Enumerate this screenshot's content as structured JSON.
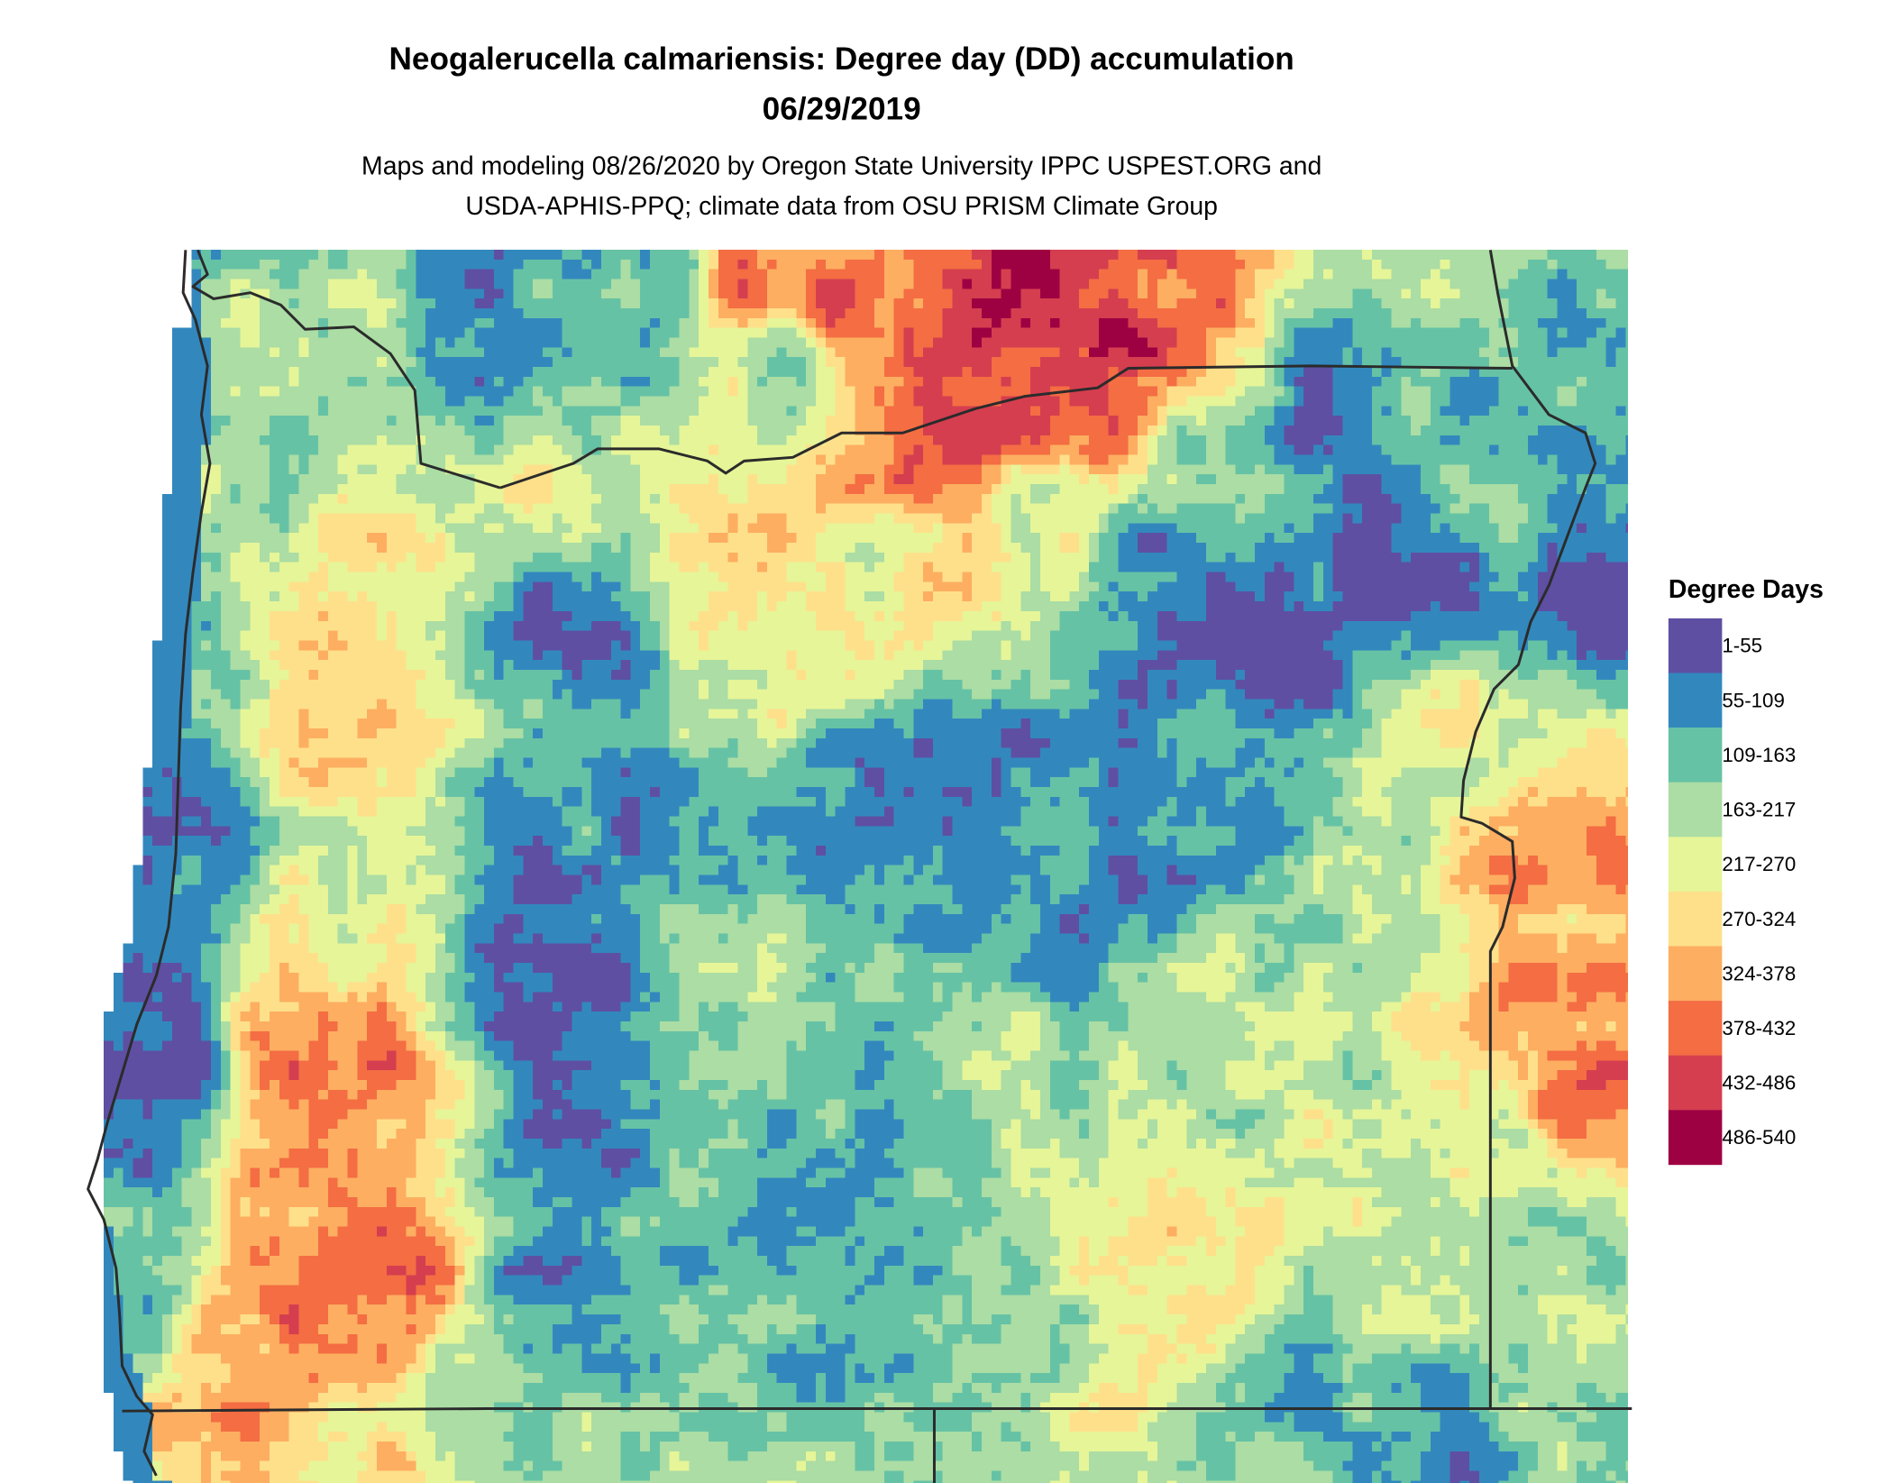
{
  "title": "Neogalerucella calmariensis: Degree day (DD) accumulation",
  "date": "06/29/2019",
  "subtitle_line1": "Maps and modeling 08/26/2020 by Oregon State University IPPC USPEST.ORG and",
  "subtitle_line2": "USDA-APHIS-PPQ; climate data from OSU PRISM Climate Group",
  "legend": {
    "title": "Degree Days",
    "items": [
      {
        "label": "1-55",
        "color": "#5E4FA2"
      },
      {
        "label": "55-109",
        "color": "#3288BD"
      },
      {
        "label": "109-163",
        "color": "#66C2A5"
      },
      {
        "label": "163-217",
        "color": "#ABDDA4"
      },
      {
        "label": "217-270",
        "color": "#E6F598"
      },
      {
        "label": "270-324",
        "color": "#FEE08B"
      },
      {
        "label": "324-378",
        "color": "#FDAE61"
      },
      {
        "label": "378-432",
        "color": "#F46D43"
      },
      {
        "label": "432-486",
        "color": "#D53E4F"
      },
      {
        "label": "486-540",
        "color": "#9E0142"
      }
    ]
  },
  "chart_data": {
    "type": "heatmap",
    "title": "Neogalerucella calmariensis: Degree day (DD) accumulation 06/29/2019",
    "legend_title": "Degree Days",
    "classes": [
      "1-55",
      "55-109",
      "109-163",
      "163-217",
      "217-270",
      "270-324",
      "324-378",
      "378-432",
      "432-486",
      "486-540"
    ],
    "legend_placement": "right"
  }
}
